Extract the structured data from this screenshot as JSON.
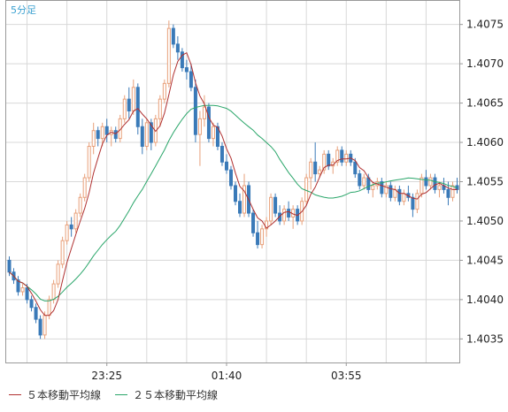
{
  "chart_data": {
    "type": "candlestick",
    "title": "5分足",
    "timeframe_label": "5分足",
    "x_tick_labels": [
      "23:25",
      "01:40",
      "03:55"
    ],
    "y_tick_labels": [
      "1.4035",
      "1.4040",
      "1.4045",
      "1.4050",
      "1.4055",
      "1.4060",
      "1.4065",
      "1.4070",
      "1.4075"
    ],
    "ylim": [
      1.4032,
      1.4078
    ],
    "grid": true,
    "legend": [
      {
        "label": "５本移動平均線",
        "color": "#b03030"
      },
      {
        "label": "２５本移動平均線",
        "color": "#2aa66a"
      }
    ],
    "colors": {
      "up_candle": "#e8a07a",
      "down_candle": "#3a7ab8",
      "ma5": "#b03030",
      "ma25": "#2aa66a",
      "title": "#3aa0d0",
      "grid": "#d8d8d8",
      "axis_text": "#222222"
    },
    "candles": [
      [
        1.4045,
        1.40455,
        1.4043,
        1.40435
      ],
      [
        1.40435,
        1.4044,
        1.4042,
        1.40425
      ],
      [
        1.40425,
        1.4043,
        1.40405,
        1.4041
      ],
      [
        1.4041,
        1.4042,
        1.40405,
        1.40415
      ],
      [
        1.40415,
        1.4042,
        1.40395,
        1.404
      ],
      [
        1.404,
        1.40405,
        1.40385,
        1.4039
      ],
      [
        1.4039,
        1.40395,
        1.4037,
        1.40375
      ],
      [
        1.40375,
        1.4038,
        1.4035,
        1.40355
      ],
      [
        1.40355,
        1.40385,
        1.4035,
        1.4038
      ],
      [
        1.4038,
        1.40405,
        1.40375,
        1.404
      ],
      [
        1.404,
        1.40425,
        1.40395,
        1.4042
      ],
      [
        1.4042,
        1.4045,
        1.40415,
        1.40445
      ],
      [
        1.40445,
        1.4048,
        1.4044,
        1.40475
      ],
      [
        1.40475,
        1.405,
        1.4047,
        1.40495
      ],
      [
        1.40495,
        1.40505,
        1.4048,
        1.4049
      ],
      [
        1.4049,
        1.40515,
        1.40485,
        1.4051
      ],
      [
        1.4051,
        1.40535,
        1.40505,
        1.4053
      ],
      [
        1.4053,
        1.4056,
        1.40525,
        1.40555
      ],
      [
        1.40555,
        1.406,
        1.4055,
        1.40595
      ],
      [
        1.40595,
        1.40625,
        1.40585,
        1.40615
      ],
      [
        1.40615,
        1.4062,
        1.40595,
        1.40605
      ],
      [
        1.40605,
        1.40625,
        1.40595,
        1.4062
      ],
      [
        1.4062,
        1.4063,
        1.406,
        1.4061
      ],
      [
        1.4061,
        1.4062,
        1.40595,
        1.40615
      ],
      [
        1.40615,
        1.4062,
        1.406,
        1.40605
      ],
      [
        1.40605,
        1.40635,
        1.406,
        1.4063
      ],
      [
        1.4063,
        1.4066,
        1.40625,
        1.40655
      ],
      [
        1.40655,
        1.4067,
        1.4063,
        1.4064
      ],
      [
        1.4064,
        1.4068,
        1.40635,
        1.4067
      ],
      [
        1.4067,
        1.40675,
        1.4061,
        1.4062
      ],
      [
        1.4062,
        1.4063,
        1.40585,
        1.40595
      ],
      [
        1.40595,
        1.4063,
        1.4059,
        1.40625
      ],
      [
        1.40625,
        1.4063,
        1.4059,
        1.406
      ],
      [
        1.406,
        1.40635,
        1.40595,
        1.4063
      ],
      [
        1.4063,
        1.4066,
        1.4062,
        1.40655
      ],
      [
        1.40655,
        1.4068,
        1.4065,
        1.40675
      ],
      [
        1.40675,
        1.40755,
        1.4067,
        1.40745
      ],
      [
        1.40745,
        1.4075,
        1.4072,
        1.40725
      ],
      [
        1.40725,
        1.40735,
        1.40705,
        1.40715
      ],
      [
        1.40715,
        1.4072,
        1.4069,
        1.40695
      ],
      [
        1.40695,
        1.40705,
        1.4068,
        1.4069
      ],
      [
        1.4069,
        1.407,
        1.40665,
        1.4067
      ],
      [
        1.4067,
        1.4068,
        1.406,
        1.4061
      ],
      [
        1.4061,
        1.4064,
        1.4057,
        1.4063
      ],
      [
        1.4063,
        1.4066,
        1.4062,
        1.40645
      ],
      [
        1.40645,
        1.4065,
        1.406,
        1.40605
      ],
      [
        1.40605,
        1.40625,
        1.40595,
        1.4062
      ],
      [
        1.4062,
        1.40625,
        1.4059,
        1.40595
      ],
      [
        1.40595,
        1.406,
        1.4057,
        1.40575
      ],
      [
        1.40575,
        1.40585,
        1.4056,
        1.40565
      ],
      [
        1.40565,
        1.4057,
        1.4054,
        1.40545
      ],
      [
        1.40545,
        1.4055,
        1.4052,
        1.40525
      ],
      [
        1.40525,
        1.40535,
        1.40505,
        1.4051
      ],
      [
        1.4051,
        1.4056,
        1.40505,
        1.40545
      ],
      [
        1.40545,
        1.4055,
        1.40505,
        1.4051
      ],
      [
        1.4051,
        1.40515,
        1.4048,
        1.40485
      ],
      [
        1.40485,
        1.405,
        1.40465,
        1.4047
      ],
      [
        1.4047,
        1.40495,
        1.40465,
        1.4049
      ],
      [
        1.4049,
        1.40505,
        1.4048,
        1.405
      ],
      [
        1.405,
        1.40535,
        1.40495,
        1.4053
      ],
      [
        1.4053,
        1.40535,
        1.40505,
        1.4051
      ],
      [
        1.4051,
        1.4052,
        1.40495,
        1.405
      ],
      [
        1.405,
        1.4052,
        1.40495,
        1.40515
      ],
      [
        1.40515,
        1.40525,
        1.405,
        1.40505
      ],
      [
        1.40505,
        1.4052,
        1.4049,
        1.40515
      ],
      [
        1.40515,
        1.4052,
        1.40495,
        1.405
      ],
      [
        1.405,
        1.4053,
        1.40495,
        1.40525
      ],
      [
        1.40525,
        1.4056,
        1.4052,
        1.40555
      ],
      [
        1.40555,
        1.4058,
        1.4054,
        1.40575
      ],
      [
        1.40575,
        1.406,
        1.4055,
        1.4056
      ],
      [
        1.4056,
        1.4057,
        1.40555,
        1.40565
      ],
      [
        1.40565,
        1.4059,
        1.4056,
        1.40585
      ],
      [
        1.40585,
        1.4059,
        1.40565,
        1.4057
      ],
      [
        1.4057,
        1.4058,
        1.4056,
        1.40575
      ],
      [
        1.40575,
        1.40595,
        1.4057,
        1.4059
      ],
      [
        1.4059,
        1.40595,
        1.4057,
        1.40575
      ],
      [
        1.40575,
        1.4059,
        1.4057,
        1.40585
      ],
      [
        1.40585,
        1.4059,
        1.4057,
        1.40575
      ],
      [
        1.40575,
        1.4058,
        1.40555,
        1.4056
      ],
      [
        1.4056,
        1.40565,
        1.4054,
        1.40545
      ],
      [
        1.40545,
        1.4056,
        1.4054,
        1.40555
      ],
      [
        1.40555,
        1.4056,
        1.40535,
        1.4054
      ],
      [
        1.4054,
        1.4055,
        1.4053,
        1.40545
      ],
      [
        1.40545,
        1.40555,
        1.4054,
        1.4055
      ],
      [
        1.4055,
        1.40555,
        1.4053,
        1.40535
      ],
      [
        1.40535,
        1.4055,
        1.4053,
        1.40545
      ],
      [
        1.40545,
        1.4055,
        1.40525,
        1.4053
      ],
      [
        1.4053,
        1.40545,
        1.40525,
        1.4054
      ],
      [
        1.4054,
        1.40545,
        1.4052,
        1.40525
      ],
      [
        1.40525,
        1.4054,
        1.4052,
        1.40535
      ],
      [
        1.40535,
        1.40545,
        1.40525,
        1.4053
      ],
      [
        1.4053,
        1.40535,
        1.40505,
        1.40515
      ],
      [
        1.40515,
        1.4054,
        1.4051,
        1.40535
      ],
      [
        1.40535,
        1.4056,
        1.4053,
        1.40555
      ],
      [
        1.40555,
        1.40565,
        1.4054,
        1.40545
      ],
      [
        1.40545,
        1.4056,
        1.4054,
        1.40555
      ],
      [
        1.40555,
        1.4056,
        1.40535,
        1.4054
      ],
      [
        1.4054,
        1.4055,
        1.4053,
        1.40545
      ],
      [
        1.40545,
        1.40555,
        1.40535,
        1.4054
      ],
      [
        1.4054,
        1.4055,
        1.4052,
        1.4053
      ],
      [
        1.4053,
        1.4055,
        1.40525,
        1.40545
      ],
      [
        1.40545,
        1.40555,
        1.40535,
        1.4054
      ]
    ]
  }
}
